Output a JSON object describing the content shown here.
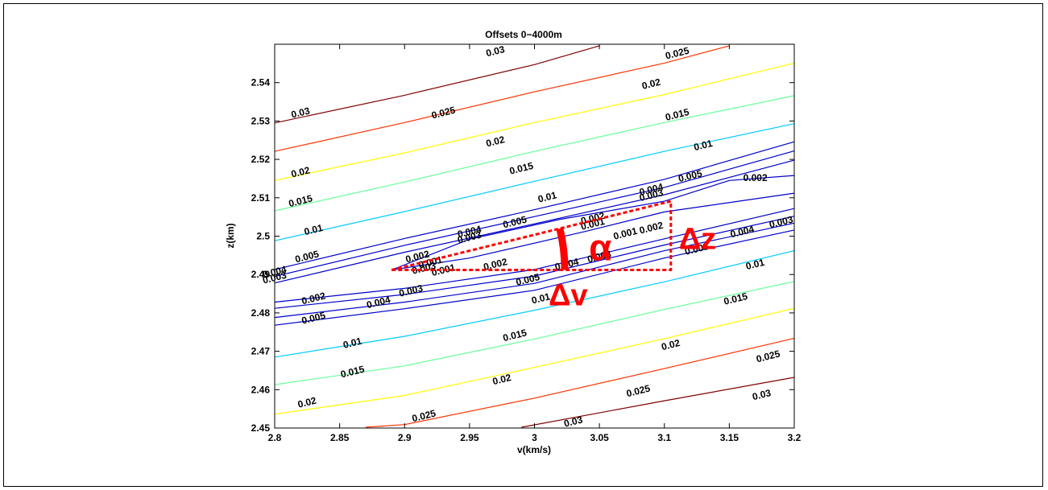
{
  "chart_data": {
    "type": "contour",
    "title": "Offsets 0−4000m",
    "xlabel": "v(km/s)",
    "ylabel": "z(km)",
    "xlim": [
      2.8,
      3.2
    ],
    "ylim": [
      2.45,
      2.55
    ],
    "xticks": [
      "2.8",
      "2.85",
      "2.9",
      "2.95",
      "3",
      "3.05",
      "3.1",
      "3.15",
      "3.2"
    ],
    "yticks": [
      "2.45",
      "2.46",
      "2.47",
      "2.48",
      "2.49",
      "2.5",
      "2.51",
      "2.52",
      "2.53",
      "2.54"
    ],
    "grid": false,
    "contours": [
      {
        "level": "0.03",
        "color": "#800000",
        "points": [
          [
            2.8,
            2.5295
          ],
          [
            2.9,
            2.5367
          ],
          [
            3.0,
            2.5447
          ],
          [
            3.05,
            2.5496
          ]
        ]
      },
      {
        "level": "0.025",
        "color": "#ff3300",
        "points": [
          [
            2.8,
            2.5221
          ],
          [
            2.9,
            2.5296
          ],
          [
            3.0,
            2.5376
          ],
          [
            3.1,
            2.5451
          ],
          [
            3.15,
            2.5496
          ]
        ]
      },
      {
        "level": "0.02",
        "color": "#ffff00",
        "points": [
          [
            2.8,
            2.5145
          ],
          [
            2.9,
            2.5217
          ],
          [
            3.0,
            2.5296
          ],
          [
            3.1,
            2.5369
          ],
          [
            3.2,
            2.5451
          ]
        ]
      },
      {
        "level": "0.015",
        "color": "#66ff99",
        "points": [
          [
            2.8,
            2.5066
          ],
          [
            2.9,
            2.5141
          ],
          [
            3.0,
            2.5221
          ],
          [
            3.1,
            2.5296
          ],
          [
            3.2,
            2.5366
          ]
        ]
      },
      {
        "level": "0.01",
        "color": "#00ccff",
        "points": [
          [
            2.8,
            2.4988
          ],
          [
            2.9,
            2.5064
          ],
          [
            3.0,
            2.5143
          ],
          [
            3.1,
            2.5221
          ],
          [
            3.2,
            2.5293
          ]
        ]
      },
      {
        "level": "0.005",
        "color": "#0000cc",
        "points": [
          [
            2.8,
            2.4913
          ],
          [
            2.9,
            2.4994
          ],
          [
            3.0,
            2.5069
          ],
          [
            3.1,
            2.5148
          ],
          [
            3.2,
            2.5246
          ]
        ]
      },
      {
        "level": "0.004",
        "color": "#0000cc",
        "points": [
          [
            2.8,
            2.4895
          ],
          [
            2.9,
            2.4976
          ],
          [
            3.0,
            2.5051
          ],
          [
            3.1,
            2.5127
          ],
          [
            3.2,
            2.5222
          ]
        ]
      },
      {
        "level": "0.003",
        "color": "#0000cc",
        "points": [
          [
            2.8,
            2.4878
          ],
          [
            2.9,
            2.4958
          ],
          [
            3.0,
            2.5032
          ],
          [
            3.1,
            2.5108
          ],
          [
            3.2,
            2.5198
          ]
        ]
      },
      {
        "level": "0.002",
        "color": "#0000cc",
        "points": [
          [
            3.2,
            2.5158
          ],
          [
            3.15,
            2.5145
          ],
          [
            3.1,
            2.5091
          ],
          [
            3.02,
            2.5044
          ],
          [
            2.95,
            2.4992
          ],
          [
            2.89,
            2.4912
          ],
          [
            2.95,
            2.4943
          ],
          [
            3.04,
            2.5013
          ],
          [
            3.1,
            2.5063
          ],
          [
            3.2,
            2.5112
          ]
        ]
      },
      {
        "level": "0.002",
        "color": "#0000cc",
        "points": [
          [
            2.8,
            2.4828
          ],
          [
            2.9,
            2.4864
          ],
          [
            3.0,
            2.4913
          ],
          [
            3.1,
            2.4993
          ],
          [
            3.2,
            2.5072
          ]
        ]
      },
      {
        "level": "0.003",
        "color": "#0000cc",
        "points": [
          [
            2.8,
            2.4812
          ],
          [
            2.9,
            2.4848
          ],
          [
            3.0,
            2.4896
          ],
          [
            3.1,
            2.4977
          ],
          [
            3.2,
            2.5052
          ]
        ]
      },
      {
        "level": "0.004",
        "color": "#0000cc",
        "points": [
          [
            2.8,
            2.4788
          ],
          [
            2.9,
            2.4828
          ],
          [
            3.0,
            2.4877
          ],
          [
            3.1,
            2.4962
          ],
          [
            3.2,
            2.5034
          ]
        ]
      },
      {
        "level": "0.005",
        "color": "#0000cc",
        "points": [
          [
            2.8,
            2.4768
          ],
          [
            2.9,
            2.4811
          ],
          [
            3.0,
            2.4859
          ],
          [
            3.1,
            2.4943
          ],
          [
            3.2,
            2.5016
          ]
        ]
      },
      {
        "level": "0.01",
        "color": "#00ccff",
        "points": [
          [
            2.8,
            2.4685
          ],
          [
            2.9,
            2.4739
          ],
          [
            3.0,
            2.4807
          ],
          [
            3.1,
            2.4881
          ],
          [
            3.2,
            2.4962
          ]
        ]
      },
      {
        "level": "0.015",
        "color": "#66ff99",
        "points": [
          [
            2.8,
            2.4613
          ],
          [
            2.9,
            2.4662
          ],
          [
            3.0,
            2.4732
          ],
          [
            3.1,
            2.4809
          ],
          [
            3.2,
            2.4882
          ]
        ]
      },
      {
        "level": "0.02",
        "color": "#ffff00",
        "points": [
          [
            2.8,
            2.4536
          ],
          [
            2.9,
            2.4585
          ],
          [
            3.0,
            2.4658
          ],
          [
            3.1,
            2.4733
          ],
          [
            3.2,
            2.4812
          ]
        ]
      },
      {
        "level": "0.025",
        "color": "#ff3300",
        "points": [
          [
            2.87,
            2.4502
          ],
          [
            2.9,
            2.4509
          ],
          [
            3.0,
            2.4578
          ],
          [
            3.1,
            2.4655
          ],
          [
            3.2,
            2.4734
          ]
        ]
      },
      {
        "level": "0.03",
        "color": "#800000",
        "points": [
          [
            2.99,
            2.4502
          ],
          [
            3.1,
            2.4571
          ],
          [
            3.2,
            2.4632
          ]
        ]
      }
    ],
    "contour_labels": [
      {
        "text": "0.03",
        "x": 2.97,
        "y": 2.548,
        "angle": -14
      },
      {
        "text": "0.025",
        "x": 3.11,
        "y": 2.5475,
        "angle": -14
      },
      {
        "text": "0.03",
        "x": 2.82,
        "y": 2.532,
        "angle": -14
      },
      {
        "text": "0.025",
        "x": 2.93,
        "y": 2.532,
        "angle": -14
      },
      {
        "text": "0.02",
        "x": 3.09,
        "y": 2.5395,
        "angle": -14
      },
      {
        "text": "0.02",
        "x": 2.97,
        "y": 2.5245,
        "angle": -14
      },
      {
        "text": "0.015",
        "x": 3.11,
        "y": 2.5315,
        "angle": -14
      },
      {
        "text": "0.02",
        "x": 2.82,
        "y": 2.5165,
        "angle": -14
      },
      {
        "text": "0.015",
        "x": 2.99,
        "y": 2.5175,
        "angle": -14
      },
      {
        "text": "0.01",
        "x": 3.13,
        "y": 2.5235,
        "angle": -14
      },
      {
        "text": "0.015",
        "x": 2.82,
        "y": 2.509,
        "angle": -14
      },
      {
        "text": "0.01",
        "x": 3.01,
        "y": 2.51,
        "angle": -14
      },
      {
        "text": "0.005",
        "x": 3.12,
        "y": 2.5155,
        "angle": -14
      },
      {
        "text": "0.002",
        "x": 3.17,
        "y": 2.515,
        "angle": 0
      },
      {
        "text": "0.01",
        "x": 2.83,
        "y": 2.5015,
        "angle": -14
      },
      {
        "text": "0.005",
        "x": 2.985,
        "y": 2.5035,
        "angle": -14
      },
      {
        "text": "0.004",
        "x": 3.09,
        "y": 2.512,
        "angle": -14
      },
      {
        "text": "0.003",
        "x": 3.09,
        "y": 2.5105,
        "angle": -14
      },
      {
        "text": "0.002",
        "x": 3.045,
        "y": 2.5045,
        "angle": -14
      },
      {
        "text": "0.001",
        "x": 3.045,
        "y": 2.503,
        "angle": -14
      },
      {
        "text": "0.004",
        "x": 2.95,
        "y": 2.501,
        "angle": -14
      },
      {
        "text": "0.003",
        "x": 2.95,
        "y": 2.4995,
        "angle": -14
      },
      {
        "text": "0.001",
        "x": 3.07,
        "y": 2.5005,
        "angle": -14
      },
      {
        "text": "0.002",
        "x": 3.09,
        "y": 2.502,
        "angle": -14
      },
      {
        "text": "0.004",
        "x": 3.16,
        "y": 2.501,
        "angle": -14
      },
      {
        "text": "0.003",
        "x": 3.19,
        "y": 2.5035,
        "angle": -14
      },
      {
        "text": "0.005",
        "x": 2.825,
        "y": 2.4945,
        "angle": -14
      },
      {
        "text": "0.002",
        "x": 2.91,
        "y": 2.4945,
        "angle": -14
      },
      {
        "text": "0.001",
        "x": 2.92,
        "y": 2.493,
        "angle": -14
      },
      {
        "text": "0.003",
        "x": 2.915,
        "y": 2.4915,
        "angle": -14
      },
      {
        "text": "0.001",
        "x": 2.93,
        "y": 2.491,
        "angle": -14
      },
      {
        "text": "0.002",
        "x": 2.97,
        "y": 2.4925,
        "angle": -14
      },
      {
        "text": "0.004",
        "x": 3.025,
        "y": 2.4925,
        "angle": -14
      },
      {
        "text": "0.003",
        "x": 3.05,
        "y": 2.4945,
        "angle": -14
      },
      {
        "text": "0.005",
        "x": 3.125,
        "y": 2.4965,
        "angle": -14
      },
      {
        "text": "0.004",
        "x": 2.8,
        "y": 2.4905,
        "angle": -14
      },
      {
        "text": "0.003",
        "x": 2.8,
        "y": 2.489,
        "angle": -14
      },
      {
        "text": "0.005",
        "x": 2.995,
        "y": 2.4885,
        "angle": -14
      },
      {
        "text": "0.01",
        "x": 3.17,
        "y": 2.4925,
        "angle": -14
      },
      {
        "text": "0.002",
        "x": 2.83,
        "y": 2.4836,
        "angle": -14
      },
      {
        "text": "0.003",
        "x": 2.905,
        "y": 2.4856,
        "angle": -14
      },
      {
        "text": "0.004",
        "x": 2.88,
        "y": 2.4826,
        "angle": -14
      },
      {
        "text": "0.01",
        "x": 3.005,
        "y": 2.4836,
        "angle": -14
      },
      {
        "text": "0.015",
        "x": 3.155,
        "y": 2.4835,
        "angle": -14
      },
      {
        "text": "0.005",
        "x": 2.83,
        "y": 2.4785,
        "angle": -14
      },
      {
        "text": "0.01",
        "x": 2.86,
        "y": 2.472,
        "angle": -14
      },
      {
        "text": "0.015",
        "x": 2.985,
        "y": 2.474,
        "angle": -14
      },
      {
        "text": "0.02",
        "x": 3.105,
        "y": 2.4715,
        "angle": -14
      },
      {
        "text": "0.015",
        "x": 2.86,
        "y": 2.4645,
        "angle": -14
      },
      {
        "text": "0.025",
        "x": 3.18,
        "y": 2.4685,
        "angle": -14
      },
      {
        "text": "0.02",
        "x": 2.975,
        "y": 2.4625,
        "angle": -14
      },
      {
        "text": "0.025",
        "x": 3.08,
        "y": 2.4595,
        "angle": -14
      },
      {
        "text": "0.03",
        "x": 3.175,
        "y": 2.4585,
        "angle": -14
      },
      {
        "text": "0.02",
        "x": 2.825,
        "y": 2.4565,
        "angle": -14
      },
      {
        "text": "0.025",
        "x": 2.915,
        "y": 2.453,
        "angle": -14
      },
      {
        "text": "0.03",
        "x": 3.03,
        "y": 2.4515,
        "angle": -14
      }
    ],
    "annotation": {
      "triangle": [
        [
          2.89,
          2.4912
        ],
        [
          3.105,
          2.5091
        ],
        [
          3.105,
          2.4912
        ]
      ],
      "color": "#ff0000",
      "alpha_label": "α",
      "dz_label": "Δz",
      "dv_label": "Δv"
    }
  }
}
